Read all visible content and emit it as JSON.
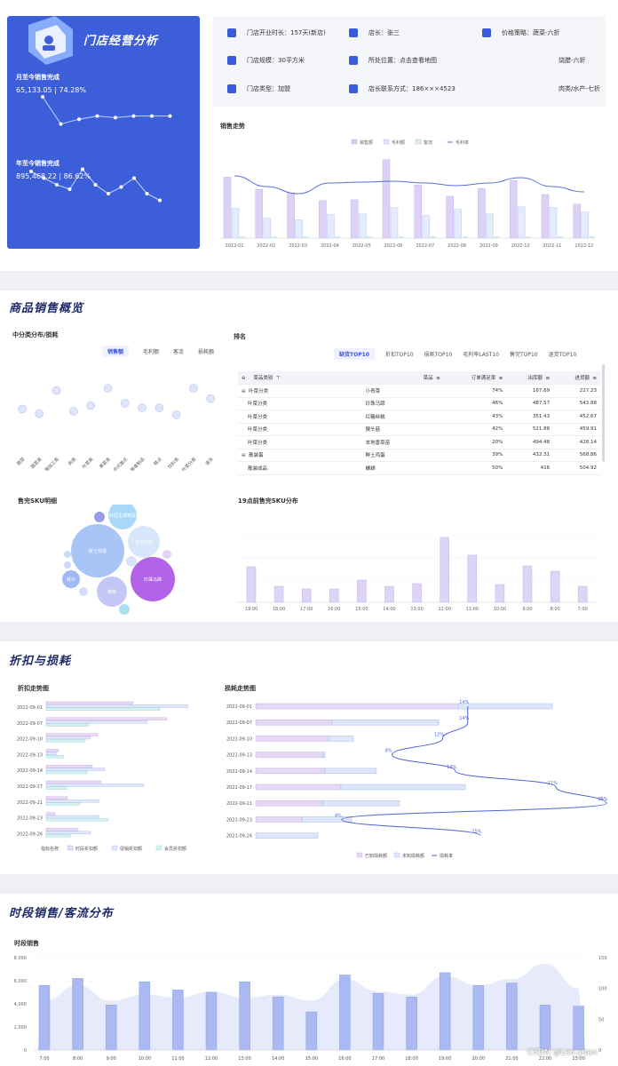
{
  "header": {
    "title": "门店经营分析",
    "month_label": "月至今销售完成",
    "month_value": "65,133.05 | 74.28%",
    "year_label": "年至今销售完成",
    "year_value": "895,468.22 | 86.62%",
    "month_line": [
      40,
      23,
      26,
      28,
      27,
      28,
      28,
      28
    ],
    "year_line": [
      30,
      27,
      24,
      22,
      31,
      24,
      20,
      23,
      27,
      20,
      17
    ]
  },
  "info": [
    {
      "text": "门店开业时长：157天(新店)"
    },
    {
      "text": "店长：张三"
    },
    {
      "text": "价格策略：蔬菜-六折"
    },
    {
      "text": "门店规模：30平方米"
    },
    {
      "text": "所处位置：点击查看地图"
    },
    {
      "text": "烧腊-六折"
    },
    {
      "text": "门店类型：加盟"
    },
    {
      "text": "店长联系方式：186×××4523"
    },
    {
      "text": "肉类/水产-七折"
    }
  ],
  "sales_trend": {
    "title": "销售走势",
    "legend": [
      "销售额",
      "毛利额",
      "客流",
      "毛利率"
    ],
    "categories": [
      "2022-01",
      "2022-02",
      "2022-03",
      "2022-04",
      "2022-05",
      "2022-06",
      "2022-07",
      "2022-08",
      "2022-09",
      "2022-10",
      "2022-11",
      "2022-12"
    ],
    "sales": [
      70,
      56,
      52,
      43,
      44,
      90,
      61,
      48,
      57,
      66,
      50,
      39
    ],
    "profit": [
      34,
      23,
      21,
      27,
      28,
      35,
      26,
      33,
      28,
      36,
      35,
      30
    ],
    "traffic": [
      2,
      2,
      2,
      2,
      2,
      2,
      2,
      2,
      2,
      2,
      2,
      2
    ],
    "rate": [
      70,
      58,
      50,
      62,
      63,
      64,
      62,
      59,
      62,
      68,
      58,
      52
    ]
  },
  "goods": {
    "title": "商品销售概览",
    "scatter_title": "中分类分布/损耗",
    "scatter_tabs": [
      "销售额",
      "毛利额",
      "客流",
      "损耗额"
    ],
    "scatter_categories": [
      "蔬菜",
      "蔬菜类",
      "蔬加工类",
      "肉类",
      "叶菜类",
      "果菜类",
      "中式面点",
      "熟食制品",
      "糕点",
      "饮料类",
      "叶菜分类",
      "速冻"
    ],
    "scatter_values": [
      42,
      38,
      58,
      40,
      45,
      60,
      47,
      43,
      43,
      37,
      60,
      51
    ],
    "rank_title": "排名",
    "rank_tabs": [
      "缺货TOP10",
      "折扣TOP10",
      "损耗TOP10",
      "毛利率LAST10",
      "售完TOP10",
      "退货TOP10"
    ],
    "rank_headers": [
      "菜品类别",
      "菜品",
      "订单满足率",
      "出库额",
      "进货额"
    ],
    "rank_rows": [
      {
        "cat": "叶菜分类",
        "item": "小青菜",
        "rate": "74%",
        "out": "167.69",
        "in": "227.23"
      },
      {
        "cat": "叶菜分类",
        "item": "珍珠马蹄",
        "rate": "46%",
        "out": "487.57",
        "in": "543.88"
      },
      {
        "cat": "叶菜分类",
        "item": "红糖丝糕",
        "rate": "43%",
        "out": "351.43",
        "in": "452.67"
      },
      {
        "cat": "叶菜分类",
        "item": "猴头菇",
        "rate": "42%",
        "out": "521.88",
        "in": "459.91"
      },
      {
        "cat": "叶菜分类",
        "item": "本地香菜苗",
        "rate": "20%",
        "out": "494.48",
        "in": "428.14"
      },
      {
        "cat": "散装蛋",
        "item": "鲜土鸡蛋",
        "rate": "39%",
        "out": "432.31",
        "in": "568.86"
      },
      {
        "cat": "散装成品",
        "item": "螺蛳",
        "rate": "50%",
        "out": "416",
        "in": "504.92"
      }
    ],
    "bubble_title": "售完SKU明细",
    "bubbles": [
      "红园生成鸭蛋",
      "鲜土鸡蛋",
      "本地鸡蛋",
      "珍珠马蹄",
      "猪骨",
      "蚝仔"
    ],
    "sku_title": "19点前售完SKU分布",
    "sku_categories": [
      "19:00",
      "18:00",
      "17:00",
      "16:00",
      "15:00",
      "14:00",
      "13:00",
      "12:00",
      "11:00",
      "10:00",
      "9:00",
      "8:00",
      "7:00"
    ],
    "sku_values": [
      40,
      18,
      15,
      15,
      25,
      18,
      21,
      73,
      53,
      20,
      41,
      35,
      18
    ]
  },
  "discount": {
    "title": "折扣与损耗",
    "discount_title": "折扣走势图",
    "dates": [
      "2022-09-01",
      "2022-09-07",
      "2022-09-10",
      "2022-09-13",
      "2022-09-14",
      "2022-09-17",
      "2022-09-21",
      "2022-09-23",
      "2022-09-26"
    ],
    "d_series": [
      {
        "name": "指标名称",
        "values": [
          98,
          136,
          58,
          14,
          52,
          62,
          24,
          10,
          36
        ]
      },
      {
        "name": "时段折扣额",
        "values": [
          160,
          114,
          50,
          12,
          66,
          110,
          60,
          60,
          50
        ]
      },
      {
        "name": "促销折扣额",
        "values": [
          128,
          48,
          44,
          20,
          46,
          24,
          38,
          70,
          28
        ]
      },
      {
        "name": "会员折扣额",
        "values": [
          0,
          0,
          0,
          0,
          0,
          0,
          0,
          0,
          0
        ]
      }
    ],
    "loss_title": "损耗走势图",
    "loss_legend": [
      "已知损耗额",
      "未知损耗额",
      "损耗率"
    ],
    "known": [
      228,
      86,
      82,
      76,
      78,
      96,
      76,
      52,
      0
    ],
    "unknown": [
      106,
      120,
      28,
      2,
      58,
      140,
      86,
      56,
      70
    ],
    "loss_rate": [
      14,
      14,
      12,
      8,
      13,
      21,
      25,
      4,
      15
    ],
    "loss_rate_labels": [
      "14%",
      "14%",
      "12%",
      "8%",
      "13%",
      "21%",
      "25%",
      "4%",
      "15%"
    ]
  },
  "period": {
    "title": "时段销售/客流分布",
    "chart_title": "时段销售",
    "y_left": [
      "8,000",
      "6,000",
      "4,000",
      "2,000",
      "0"
    ],
    "y_right": [
      "150",
      "100",
      "50",
      "0"
    ],
    "categories": [
      "7:00",
      "8:00",
      "9:00",
      "10:00",
      "11:00",
      "12:00",
      "13:00",
      "14:00",
      "15:00",
      "16:00",
      "17:00",
      "18:00",
      "19:00",
      "20:00",
      "21:00",
      "22:00",
      "23:00"
    ],
    "sales": [
      5600,
      6200,
      3900,
      5900,
      5200,
      5000,
      5900,
      4600,
      3300,
      6500,
      4900,
      4600,
      6700,
      5600,
      5800,
      3900,
      3800
    ],
    "traffic_area": [
      80,
      105,
      80,
      90,
      85,
      95,
      85,
      90,
      80,
      115,
      95,
      90,
      120,
      105,
      115,
      140,
      100
    ]
  },
  "watermark": "CSDN @Leo.yuan"
}
